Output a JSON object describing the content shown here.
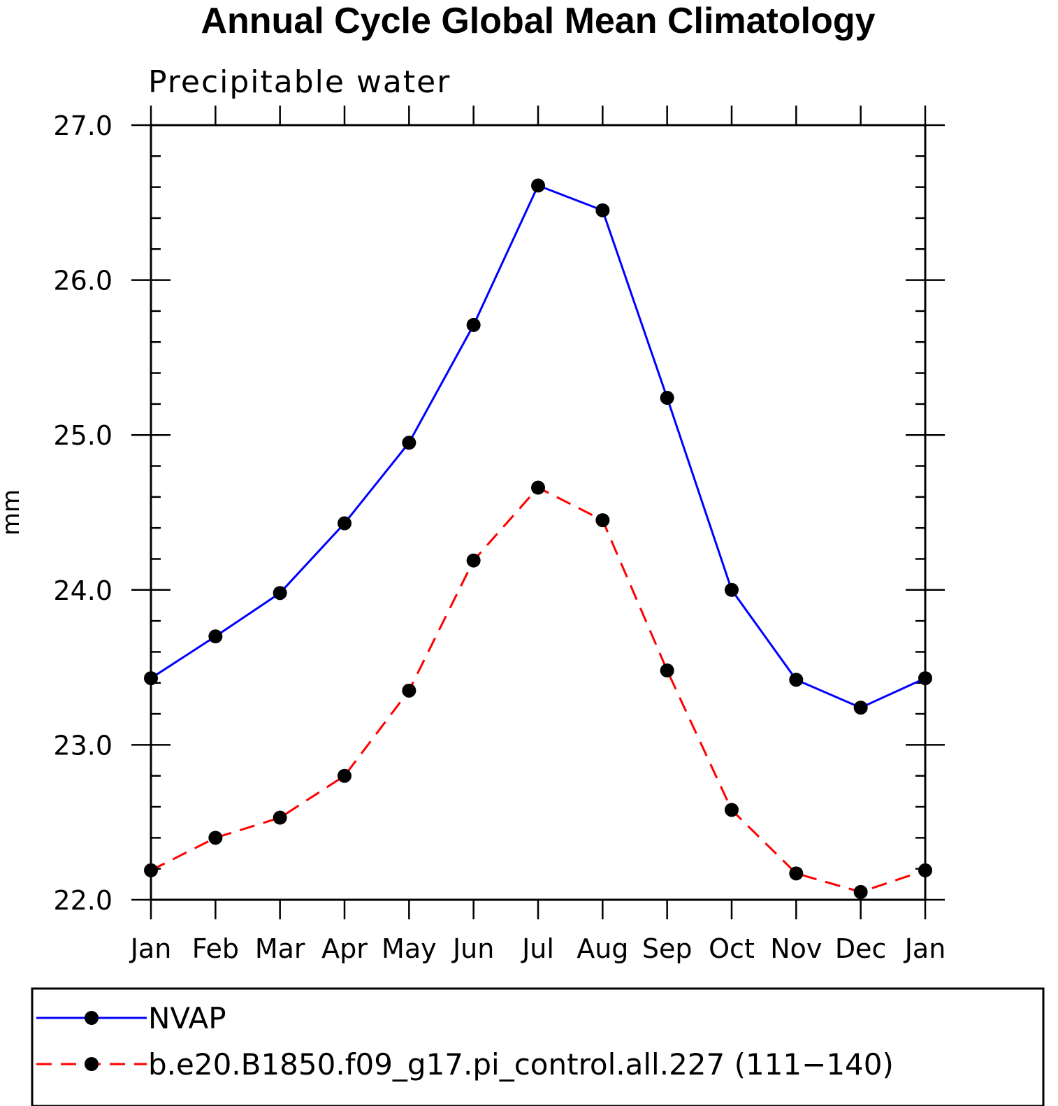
{
  "chart_data": {
    "type": "line",
    "title": "Annual Cycle Global Mean Climatology",
    "subtitle": "Precipitable water",
    "ylabel": "mm",
    "xlabel": "",
    "ylim": [
      22.0,
      27.0
    ],
    "yticks": [
      "22.0",
      "23.0",
      "24.0",
      "25.0",
      "26.0",
      "27.0"
    ],
    "categories": [
      "Jan",
      "Feb",
      "Mar",
      "Apr",
      "May",
      "Jun",
      "Jul",
      "Aug",
      "Sep",
      "Oct",
      "Nov",
      "Dec",
      "Jan"
    ],
    "series": [
      {
        "name": "NVAP",
        "color": "#0000ff",
        "dash": "solid",
        "values": [
          23.43,
          23.7,
          23.98,
          24.43,
          24.95,
          25.71,
          26.61,
          26.45,
          25.24,
          24.0,
          23.42,
          23.24,
          23.43
        ]
      },
      {
        "name": "b.e20.B1850.f09_g17.pi_control.all.227 (111−140)",
        "color": "#ff0000",
        "dash": "dashed",
        "values": [
          22.19,
          22.4,
          22.53,
          22.8,
          23.35,
          24.19,
          24.66,
          24.45,
          23.48,
          22.58,
          22.17,
          22.05,
          22.19
        ]
      }
    ],
    "grid": false,
    "legend": "bottom"
  }
}
